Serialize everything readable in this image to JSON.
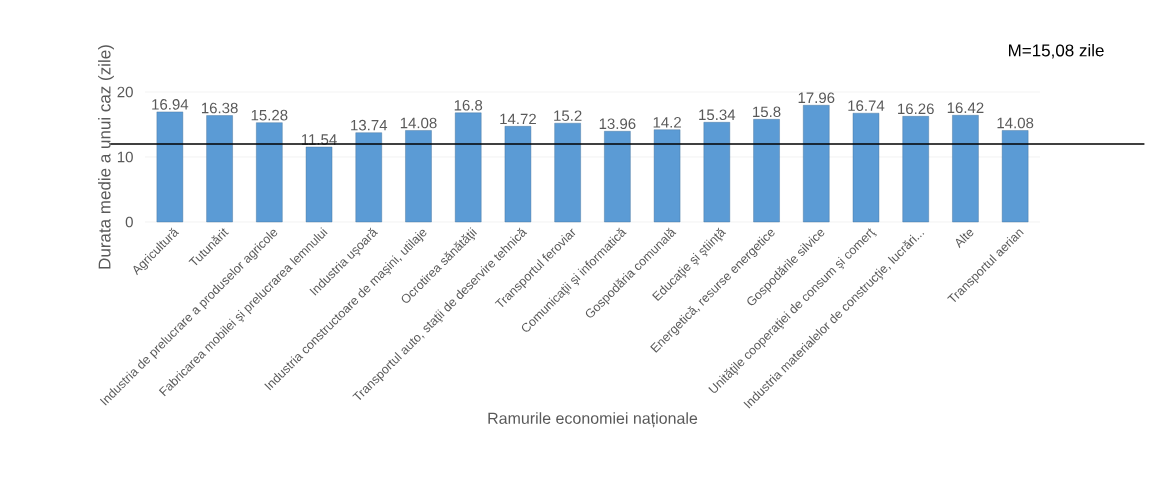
{
  "chart_data": {
    "type": "bar",
    "xlabel": "Ramurile economiei naționale",
    "ylabel": "Durata medie a unui caz (zile)",
    "categories": [
      "Agricultură",
      "Tutunărit",
      "Industria de prelucrare a produselor  agricole",
      "Fabricarea  mobilei şi prelucrarea lemnului",
      "Industria uşoară",
      "Industria constructoare de maşini, utilaje",
      "Ocrotirea sănătăţii",
      "Transportul auto, staţii de deservire tehnică",
      "Transportul feroviar",
      "Comunicaţii şi informatică",
      "Gospodăria comunală",
      "Educaţie şi ştiinţă",
      "Energetică, resurse energetice",
      "Gospodările silvice",
      "Unităţile cooperaţiei de consum şi comerţ",
      "Industria materialelor de construcţie, lucrări...",
      "Alte",
      "Transportul aerian"
    ],
    "values": [
      16.94,
      16.38,
      15.28,
      11.54,
      13.74,
      14.08,
      16.8,
      14.72,
      15.2,
      13.96,
      14.2,
      15.34,
      15.8,
      17.96,
      16.74,
      16.26,
      16.42,
      14.08
    ],
    "color": "#5b9bd5",
    "data_labels": true,
    "ylim": [
      0,
      20
    ],
    "yticks": [
      0,
      10,
      20
    ],
    "grid": "y",
    "annotations": [
      "M=15,08 zile"
    ],
    "ref_lines": [
      {
        "axis": "y",
        "value": 12,
        "color": "#000000"
      }
    ]
  }
}
